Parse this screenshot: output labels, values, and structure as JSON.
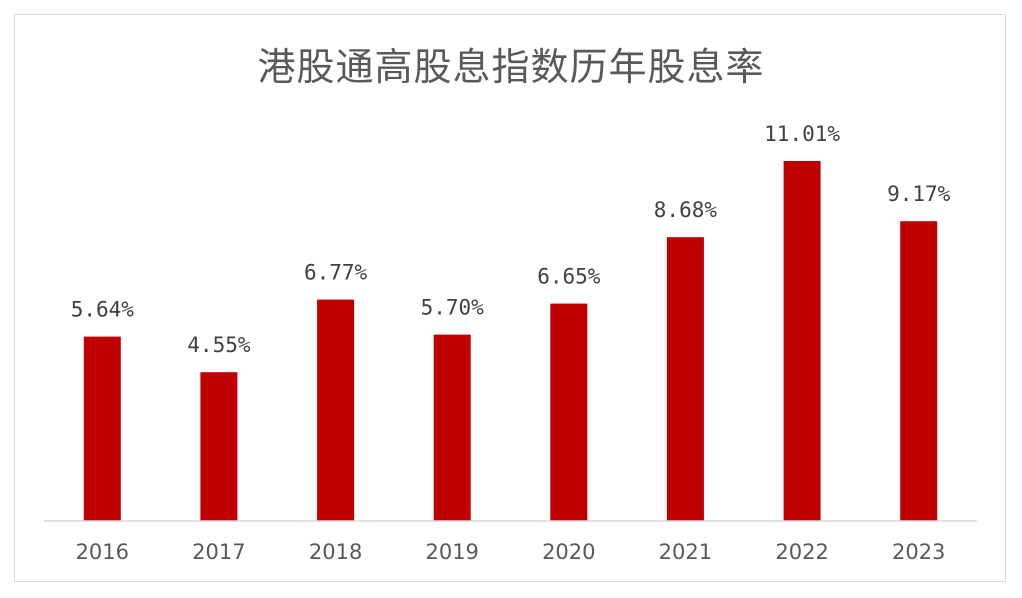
{
  "chart_data": {
    "type": "bar",
    "title": "港股通高股息指数历年股息率",
    "categories": [
      "2016",
      "2017",
      "2018",
      "2019",
      "2020",
      "2021",
      "2022",
      "2023"
    ],
    "values": [
      5.64,
      4.55,
      6.77,
      5.7,
      6.65,
      8.68,
      11.01,
      9.17
    ],
    "data_labels": [
      "5.64%",
      "4.55%",
      "6.77%",
      "5.70%",
      "6.65%",
      "8.68%",
      "11.01%",
      "9.17%"
    ],
    "xlabel": "",
    "ylabel": "",
    "ylim": [
      0,
      11.01
    ],
    "grid": false,
    "legend": "none",
    "colors": {
      "bar": "#c00000",
      "text": "#595959"
    }
  }
}
